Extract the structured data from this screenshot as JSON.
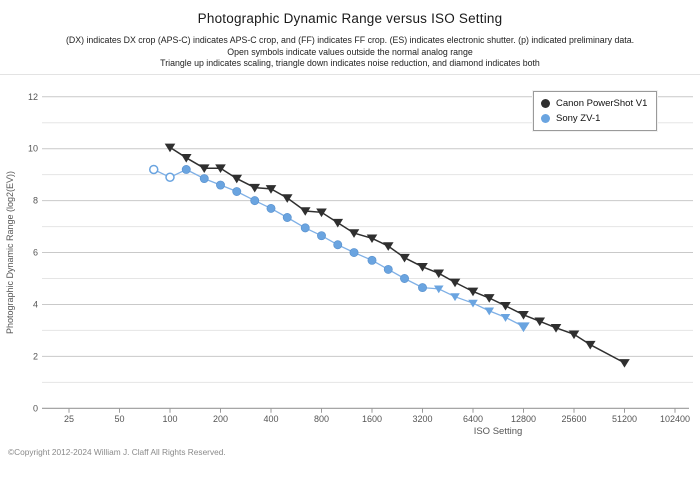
{
  "page": {
    "title": "Photographic Dynamic Range versus ISO Setting",
    "subtitle_lines": [
      "(DX) indicates DX crop (APS-C) indicates APS-C crop, and (FF) indicates FF crop. (ES) indicates electronic shutter. (p) indicated preliminary data.",
      "Open symbols indicate values outside the normal analog range",
      "Triangle up indicates scaling, triangle down indicates noise reduction, and diamond indicates both"
    ],
    "copyright": "©Copyright 2012-2024 William J. Claff All Rights Reserved."
  },
  "legend": {
    "position": "top-right",
    "items": [
      {
        "label": "Canon PowerShot V1",
        "color": "#2f2f2f"
      },
      {
        "label": "Sony ZV-1",
        "color": "#6aa4e0"
      }
    ]
  },
  "chart_data": {
    "type": "line",
    "title": "Photographic Dynamic Range versus ISO Setting",
    "xlabel": "ISO Setting",
    "ylabel": "Photographic Dynamic Range (log2(EV))",
    "x_scale": "log2",
    "x_ticks": [
      25,
      50,
      100,
      200,
      400,
      800,
      1600,
      3200,
      6400,
      12800,
      25600,
      51200,
      102400
    ],
    "y_ticks_labeled": [
      0,
      2,
      4,
      6,
      8,
      10,
      12
    ],
    "ylim": [
      0,
      12
    ],
    "grid": "horizontal gridlines every 1 EV, darker on even values",
    "legend_position": "top-right",
    "colors": {
      "canon": "#2f2f2f",
      "sony_fill": "#6aa4e0",
      "sony_line": "#7fb0e6",
      "grid_major": "#c9c9c9",
      "grid_minor": "#e5e5e5",
      "axis": "#9a9a9a",
      "tick_label": "#555555"
    },
    "series": [
      {
        "name": "Canon PowerShot V1",
        "color": "#2f2f2f",
        "marker_default": "triangle-down",
        "points": [
          {
            "iso": 100,
            "ev": 10.05
          },
          {
            "iso": 125,
            "ev": 9.65
          },
          {
            "iso": 160,
            "ev": 9.25
          },
          {
            "iso": 200,
            "ev": 9.25
          },
          {
            "iso": 250,
            "ev": 8.85
          },
          {
            "iso": 320,
            "ev": 8.5
          },
          {
            "iso": 400,
            "ev": 8.45
          },
          {
            "iso": 500,
            "ev": 8.1
          },
          {
            "iso": 640,
            "ev": 7.6
          },
          {
            "iso": 800,
            "ev": 7.55
          },
          {
            "iso": 1000,
            "ev": 7.15
          },
          {
            "iso": 1250,
            "ev": 6.75
          },
          {
            "iso": 1600,
            "ev": 6.55
          },
          {
            "iso": 2000,
            "ev": 6.25
          },
          {
            "iso": 2500,
            "ev": 5.8
          },
          {
            "iso": 3200,
            "ev": 5.45
          },
          {
            "iso": 4000,
            "ev": 5.2
          },
          {
            "iso": 5000,
            "ev": 4.85
          },
          {
            "iso": 6400,
            "ev": 4.5
          },
          {
            "iso": 8000,
            "ev": 4.25
          },
          {
            "iso": 10000,
            "ev": 3.95
          },
          {
            "iso": 12800,
            "ev": 3.6
          },
          {
            "iso": 16000,
            "ev": 3.35
          },
          {
            "iso": 20000,
            "ev": 3.1
          },
          {
            "iso": 25600,
            "ev": 2.85
          },
          {
            "iso": 32000,
            "ev": 2.45
          },
          {
            "iso": 51200,
            "ev": 1.75
          }
        ]
      },
      {
        "name": "Sony ZV-1",
        "color": "#6aa4e0",
        "marker_default": "circle",
        "points": [
          {
            "iso": 80,
            "ev": 9.2,
            "marker": "circle-open"
          },
          {
            "iso": 100,
            "ev": 8.9,
            "marker": "circle-open"
          },
          {
            "iso": 125,
            "ev": 9.2
          },
          {
            "iso": 160,
            "ev": 8.85
          },
          {
            "iso": 200,
            "ev": 8.6
          },
          {
            "iso": 250,
            "ev": 8.35
          },
          {
            "iso": 320,
            "ev": 8.0
          },
          {
            "iso": 400,
            "ev": 7.7
          },
          {
            "iso": 500,
            "ev": 7.35
          },
          {
            "iso": 640,
            "ev": 6.95
          },
          {
            "iso": 800,
            "ev": 6.65
          },
          {
            "iso": 1000,
            "ev": 6.3
          },
          {
            "iso": 1250,
            "ev": 6.0
          },
          {
            "iso": 1600,
            "ev": 5.7
          },
          {
            "iso": 2000,
            "ev": 5.35
          },
          {
            "iso": 2500,
            "ev": 5.0
          },
          {
            "iso": 3200,
            "ev": 4.65
          },
          {
            "iso": 4000,
            "ev": 4.6,
            "marker": "triangle-down"
          },
          {
            "iso": 5000,
            "ev": 4.3,
            "marker": "triangle-down"
          },
          {
            "iso": 6400,
            "ev": 4.05,
            "marker": "triangle-down"
          },
          {
            "iso": 8000,
            "ev": 3.75,
            "marker": "triangle-down"
          },
          {
            "iso": 10000,
            "ev": 3.5,
            "marker": "triangle-down"
          },
          {
            "iso": 12800,
            "ev": 3.15,
            "marker": "triangle-down-large"
          }
        ]
      }
    ]
  }
}
